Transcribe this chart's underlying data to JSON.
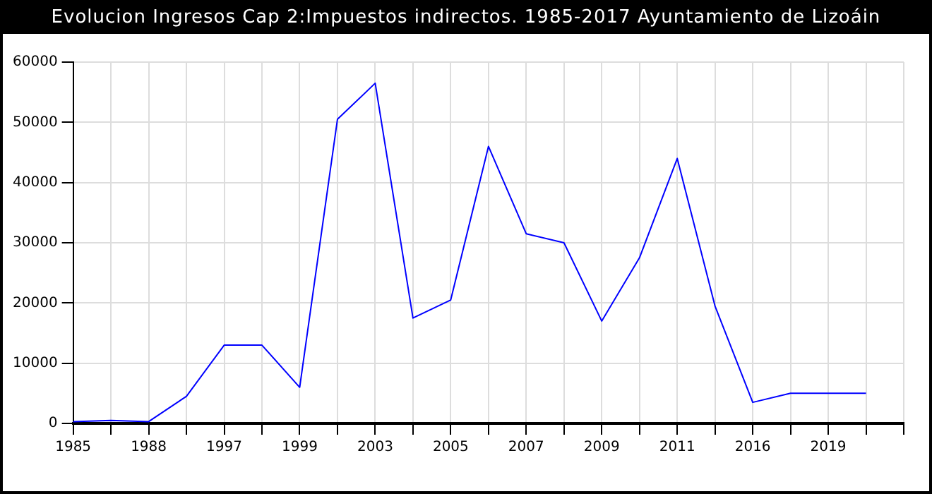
{
  "chart_data": {
    "type": "line",
    "title": "Evolucion Ingresos Cap 2:Impuestos indirectos. 1985-2017 Ayuntamiento de Lizoáin",
    "categories": [
      "1985",
      null,
      "1988",
      null,
      "1997",
      null,
      "1999",
      null,
      "2003",
      null,
      "2005",
      null,
      "2007",
      null,
      "2009",
      null,
      "2011",
      null,
      "2016",
      null,
      "2019",
      null,
      null
    ],
    "series": [
      {
        "color": "#0000ff",
        "values": [
          300,
          500,
          300,
          4500,
          13000,
          13000,
          6000,
          50500,
          56500,
          17500,
          20500,
          46000,
          31500,
          30000,
          17000,
          27500,
          44000,
          19500,
          3500,
          5000,
          5000,
          5000,
          null
        ]
      }
    ],
    "ylim": [
      0,
      60000
    ],
    "yticks": [
      0,
      10000,
      20000,
      30000,
      40000,
      50000,
      60000
    ],
    "grid": true,
    "legend": false,
    "marker": "none",
    "line_style": "solid"
  }
}
